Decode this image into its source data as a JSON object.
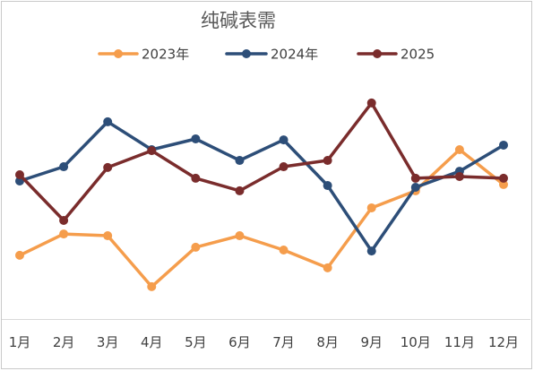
{
  "chart_data": {
    "type": "line",
    "title": "纯碱表需",
    "xlabel": "",
    "ylabel": "",
    "categories": [
      "1月",
      "2月",
      "3月",
      "4月",
      "5月",
      "6月",
      "7月",
      "8月",
      "9月",
      "10月",
      "11月",
      "12月"
    ],
    "series": [
      {
        "name": "2023年",
        "color": "#F59D4C",
        "values": [
          25.4,
          33.9,
          33.2,
          12.9,
          28.6,
          33.2,
          27.5,
          20.4,
          44.3,
          51.1,
          67.5,
          53.6
        ]
      },
      {
        "name": "2024年",
        "color": "#2D4E78",
        "values": [
          55.0,
          60.7,
          78.6,
          67.5,
          71.8,
          63.2,
          71.4,
          53.2,
          27.1,
          52.5,
          58.9,
          69.3
        ]
      },
      {
        "name": "2025",
        "color": "#7A2C2C",
        "values": [
          57.5,
          39.3,
          60.4,
          67.1,
          56.1,
          51.1,
          60.7,
          63.2,
          86.1,
          56.1,
          56.8,
          56.1
        ]
      }
    ],
    "ylim": [
      0,
      100
    ],
    "y_axis_labels_visible": false,
    "grid": false,
    "legend": "top",
    "marker": "circle"
  }
}
